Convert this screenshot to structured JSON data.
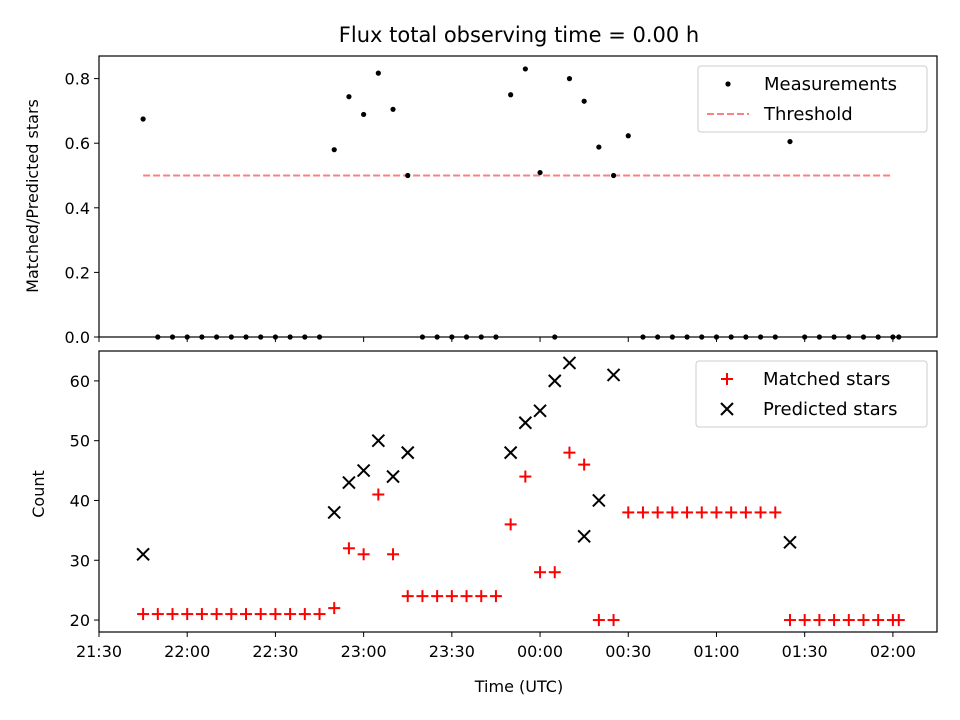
{
  "chart_data": [
    {
      "type": "scatter",
      "title": "Flux total observing time = 0.00 h",
      "xlabel": "",
      "ylabel": "Matched/Predicted stars",
      "xlim": [
        "21:30",
        "02:15"
      ],
      "ylim": [
        0,
        0.87
      ],
      "yticks": [
        "0.0",
        "0.2",
        "0.4",
        "0.6",
        "0.8"
      ],
      "grid": false,
      "legend": "top-right",
      "series": [
        {
          "name": "Measurements",
          "marker": "dot",
          "color": "#000000",
          "x": [
            "21:45",
            "21:50",
            "21:55",
            "22:00",
            "22:05",
            "22:10",
            "22:15",
            "22:20",
            "22:25",
            "22:30",
            "22:35",
            "22:40",
            "22:45",
            "22:50",
            "22:55",
            "23:00",
            "23:05",
            "23:10",
            "23:15",
            "23:20",
            "23:25",
            "23:30",
            "23:35",
            "23:40",
            "23:45",
            "23:50",
            "23:55",
            "00:00",
            "00:05",
            "00:10",
            "00:15",
            "00:20",
            "00:25",
            "00:30",
            "00:35",
            "00:40",
            "00:45",
            "00:50",
            "00:55",
            "01:00",
            "01:05",
            "01:10",
            "01:15",
            "01:20",
            "01:25",
            "01:30",
            "01:35",
            "01:40",
            "01:45",
            "01:50",
            "01:55",
            "02:00",
            "02:02"
          ],
          "y": [
            0.675,
            0.0,
            0.0,
            0.0,
            0.0,
            0.0,
            0.0,
            0.0,
            0.0,
            0.0,
            0.0,
            0.0,
            0.0,
            0.58,
            0.744,
            0.689,
            0.817,
            0.705,
            0.5,
            0.0,
            0.0,
            0.0,
            0.0,
            0.0,
            0.0,
            0.75,
            0.83,
            0.509,
            0.0,
            0.8,
            0.73,
            0.588,
            0.5,
            0.623,
            0.0,
            0.0,
            0.0,
            0.0,
            0.0,
            0.0,
            0.0,
            0.0,
            0.0,
            0.0,
            0.605,
            0.0,
            0.0,
            0.0,
            0.0,
            0.0,
            0.0,
            0.0,
            0.0
          ]
        },
        {
          "name": "Threshold",
          "type": "line",
          "style": "dashed",
          "color": "#ff7f7f",
          "x": [
            "21:45",
            "02:00"
          ],
          "y": [
            0.5,
            0.5
          ]
        }
      ]
    },
    {
      "type": "scatter",
      "title": "",
      "xlabel": "Time (UTC)",
      "ylabel": "Count",
      "xlim": [
        "21:30",
        "02:15"
      ],
      "ylim": [
        18,
        65
      ],
      "yticks": [
        "20",
        "30",
        "40",
        "50",
        "60"
      ],
      "xticks": [
        "21:30",
        "22:00",
        "22:30",
        "23:00",
        "23:30",
        "00:00",
        "00:30",
        "01:00",
        "01:30",
        "02:00"
      ],
      "grid": false,
      "legend": "top-right",
      "series": [
        {
          "name": "Matched stars",
          "marker": "plus",
          "color": "#ff0000",
          "x": [
            "21:45",
            "21:50",
            "21:55",
            "22:00",
            "22:05",
            "22:10",
            "22:15",
            "22:20",
            "22:25",
            "22:30",
            "22:35",
            "22:40",
            "22:45",
            "22:50",
            "22:55",
            "23:00",
            "23:05",
            "23:10",
            "23:15",
            "23:20",
            "23:25",
            "23:30",
            "23:35",
            "23:40",
            "23:45",
            "23:50",
            "23:55",
            "00:00",
            "00:05",
            "00:10",
            "00:15",
            "00:20",
            "00:25",
            "00:30",
            "00:35",
            "00:40",
            "00:45",
            "00:50",
            "00:55",
            "01:00",
            "01:05",
            "01:10",
            "01:15",
            "01:20",
            "01:25",
            "01:30",
            "01:35",
            "01:40",
            "01:45",
            "01:50",
            "01:55",
            "02:00",
            "02:02"
          ],
          "y": [
            21,
            21,
            21,
            21,
            21,
            21,
            21,
            21,
            21,
            21,
            21,
            21,
            21,
            22,
            32,
            31,
            41,
            31,
            24,
            24,
            24,
            24,
            24,
            24,
            24,
            36,
            44,
            28,
            28,
            48,
            46,
            20,
            20,
            38,
            38,
            38,
            38,
            38,
            38,
            38,
            38,
            38,
            38,
            38,
            20,
            20,
            20,
            20,
            20,
            20,
            20,
            20,
            20
          ]
        },
        {
          "name": "Predicted stars",
          "marker": "x",
          "color": "#000000",
          "x": [
            "21:45",
            "22:50",
            "22:55",
            "23:00",
            "23:05",
            "23:10",
            "23:15",
            "23:50",
            "23:55",
            "00:00",
            "00:05",
            "00:10",
            "00:15",
            "00:20",
            "00:25",
            "01:25"
          ],
          "y": [
            31,
            38,
            43,
            45,
            50,
            44,
            48,
            48,
            53,
            55,
            60,
            63,
            34,
            40,
            61,
            33
          ]
        }
      ]
    }
  ]
}
